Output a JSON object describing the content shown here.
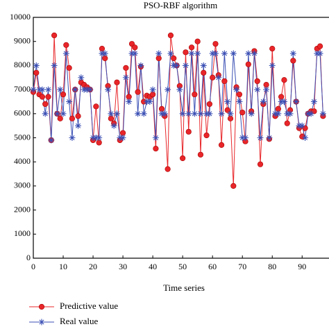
{
  "chart_data": {
    "type": "line",
    "title": "PSO-RBF algorithm",
    "x_label": "Time series",
    "xlim": [
      0,
      99
    ],
    "xticks": [
      0,
      10,
      20,
      30,
      40,
      50,
      60,
      70,
      80,
      90
    ],
    "ylim": [
      0,
      10000
    ],
    "yticks": [
      0,
      1000,
      2000,
      3000,
      4000,
      5000,
      6000,
      7000,
      8000,
      9000,
      10000
    ],
    "x": [
      0,
      1,
      2,
      3,
      4,
      5,
      6,
      7,
      8,
      9,
      10,
      11,
      12,
      13,
      14,
      15,
      16,
      17,
      18,
      19,
      20,
      21,
      22,
      23,
      24,
      25,
      26,
      27,
      28,
      29,
      30,
      31,
      32,
      33,
      34,
      35,
      36,
      37,
      38,
      39,
      40,
      41,
      42,
      43,
      44,
      45,
      46,
      47,
      48,
      49,
      50,
      51,
      52,
      53,
      54,
      55,
      56,
      57,
      58,
      59,
      60,
      61,
      62,
      63,
      64,
      65,
      66,
      67,
      68,
      69,
      70,
      71,
      72,
      73,
      74,
      75,
      76,
      77,
      78,
      79,
      80,
      81,
      82,
      83,
      84,
      85,
      86,
      87,
      88,
      89,
      90,
      91,
      92,
      93,
      94,
      95,
      96,
      97
    ],
    "series": [
      {
        "name": "Predictive value",
        "color": "#e8262a",
        "marker": "circle",
        "values": [
          6900,
          7700,
          6800,
          6700,
          6400,
          6700,
          4900,
          9250,
          6000,
          5800,
          6800,
          8850,
          7900,
          5800,
          7000,
          5900,
          7300,
          7200,
          7100,
          7000,
          4900,
          6300,
          4800,
          8700,
          8300,
          7150,
          5800,
          5600,
          7300,
          4900,
          5200,
          7900,
          6700,
          8900,
          8750,
          6900,
          7950,
          6500,
          6750,
          6700,
          6800,
          4550,
          8300,
          6200,
          5900,
          3700,
          9250,
          8300,
          8000,
          7150,
          4150,
          8550,
          5250,
          8750,
          6800,
          9000,
          4300,
          7700,
          5100,
          6400,
          7500,
          8900,
          7600,
          4700,
          7350,
          6150,
          5800,
          3000,
          7100,
          6800,
          6050,
          4850,
          8050,
          6100,
          8600,
          7350,
          3900,
          6400,
          7200,
          4950,
          8700,
          5900,
          6200,
          6700,
          7400,
          5600,
          6150,
          8200,
          6500,
          5400,
          5050,
          5400,
          6000,
          6100,
          6100,
          8700,
          8800,
          5900
        ]
      },
      {
        "name": "Real value",
        "color": "#3a4fb4",
        "marker": "star",
        "values": [
          7000,
          8000,
          7000,
          7000,
          6000,
          7000,
          4900,
          8000,
          6000,
          7000,
          6000,
          8500,
          6500,
          5000,
          7000,
          5500,
          7500,
          7000,
          7000,
          7000,
          5000,
          5000,
          5000,
          8500,
          8500,
          7000,
          6000,
          5500,
          6000,
          5000,
          5000,
          7500,
          6500,
          8500,
          8500,
          6000,
          8000,
          6000,
          6500,
          6500,
          7000,
          5000,
          8500,
          6000,
          6000,
          7000,
          8500,
          8000,
          8000,
          7000,
          6000,
          8000,
          6000,
          8500,
          6000,
          8500,
          6000,
          8000,
          6000,
          6000,
          8500,
          8500,
          7500,
          6000,
          8500,
          6500,
          6000,
          8500,
          7000,
          6500,
          5000,
          5000,
          8500,
          6000,
          8500,
          7000,
          5000,
          6500,
          7000,
          5000,
          8000,
          6000,
          6000,
          6500,
          6500,
          6000,
          6000,
          8500,
          6500,
          5500,
          5500,
          5000,
          6000,
          6000,
          6500,
          8500,
          8500,
          6000
        ]
      }
    ]
  }
}
